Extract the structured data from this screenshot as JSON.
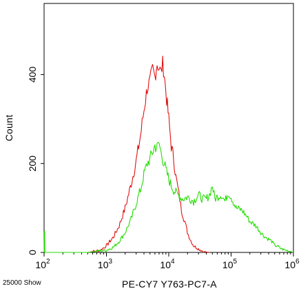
{
  "chart_data": {
    "type": "histogram",
    "xlabel": "PE-CY7 Y763-PC7-A",
    "ylabel": "Count",
    "x_scale": "log",
    "xlim": [
      100,
      1000000
    ],
    "ylim": [
      0,
      560
    ],
    "x_ticks": [
      {
        "value": 100,
        "base": "10",
        "exp": "2"
      },
      {
        "value": 1000,
        "base": "10",
        "exp": "3"
      },
      {
        "value": 10000,
        "base": "10",
        "exp": "4"
      },
      {
        "value": 100000,
        "base": "10",
        "exp": "5"
      },
      {
        "value": 1000000,
        "base": "10",
        "exp": "6"
      }
    ],
    "y_ticks": [
      {
        "value": 0,
        "label": "0"
      },
      {
        "value": 200,
        "label": "200"
      },
      {
        "value": 400,
        "label": "400"
      }
    ],
    "footer_note": "25000 Show",
    "series": [
      {
        "color": "#e01010",
        "x": [
          500,
          800,
          1000,
          1300,
          1600,
          2000,
          2500,
          3000,
          3500,
          4000,
          4500,
          5000,
          5500,
          6000,
          6500,
          7000,
          7500,
          8000,
          8500,
          9000,
          9500,
          10000,
          11000,
          12000,
          13000,
          14000,
          15000,
          16000,
          18000,
          20000,
          22000,
          25000,
          30000,
          35000,
          40000,
          45000
        ],
        "y": [
          0,
          5,
          15,
          35,
          60,
          100,
          155,
          205,
          260,
          320,
          370,
          385,
          410,
          395,
          425,
          415,
          405,
          425,
          400,
          360,
          330,
          300,
          240,
          210,
          170,
          145,
          120,
          95,
          70,
          45,
          30,
          15,
          8,
          3,
          1,
          0
        ]
      },
      {
        "color": "#22dd00",
        "x": [
          100,
          101,
          102,
          103,
          500,
          1000,
          1300,
          1600,
          2000,
          2500,
          3000,
          3500,
          4000,
          4500,
          5000,
          5500,
          6000,
          6500,
          7000,
          7500,
          8000,
          8500,
          9000,
          9500,
          10000,
          11000,
          12000,
          13000,
          14000,
          15000,
          17000,
          20000,
          25000,
          30000,
          35000,
          40000,
          45000,
          50000,
          55000,
          60000,
          70000,
          80000,
          90000,
          100000,
          120000,
          150000,
          180000,
          200000,
          250000,
          300000,
          350000,
          400000,
          450000,
          500000,
          550000,
          600000,
          700000,
          800000,
          900000,
          1000000
        ],
        "y": [
          0,
          50,
          50,
          0,
          0,
          5,
          12,
          25,
          45,
          75,
          110,
          140,
          175,
          200,
          210,
          225,
          240,
          235,
          245,
          225,
          210,
          200,
          185,
          175,
          165,
          150,
          140,
          135,
          130,
          125,
          120,
          125,
          115,
          130,
          120,
          120,
          130,
          150,
          120,
          125,
          130,
          115,
          135,
          125,
          100,
          95,
          80,
          70,
          60,
          45,
          35,
          30,
          25,
          15,
          15,
          10,
          6,
          4,
          2,
          0
        ]
      }
    ]
  }
}
